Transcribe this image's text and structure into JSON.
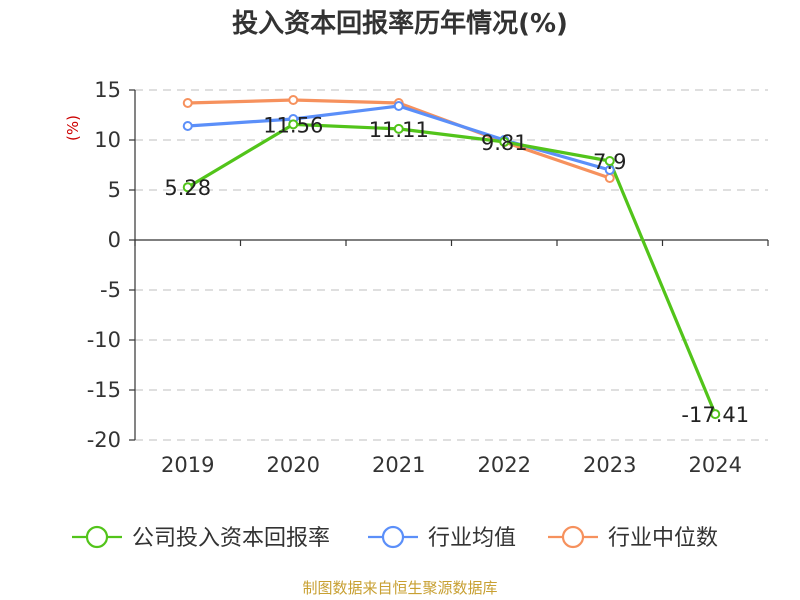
{
  "chart_data": {
    "type": "line",
    "title": "投入资本回报率历年情况(%)",
    "unit_label": "(%)",
    "categories": [
      "2019",
      "2020",
      "2021",
      "2022",
      "2023",
      "2024"
    ],
    "ylim": [
      -20,
      15
    ],
    "yticks": [
      15,
      10,
      5,
      0,
      -5,
      -10,
      -15,
      -20
    ],
    "grid": true,
    "legend_position": "bottom",
    "series": [
      {
        "name": "公司投入资本回报率",
        "color": "#52c41a",
        "values": [
          5.28,
          11.56,
          11.11,
          9.81,
          7.9,
          -17.41
        ],
        "labels": [
          "5.28",
          "11.56",
          "11.11",
          "9.81",
          "7.9",
          "-17.41"
        ]
      },
      {
        "name": "行业均值",
        "color": "#5b8ff9",
        "values": [
          11.4,
          12.1,
          13.4,
          10.0,
          7.0,
          null
        ]
      },
      {
        "name": "行业中位数",
        "color": "#f6915d",
        "values": [
          13.7,
          14.0,
          13.7,
          9.8,
          6.2,
          null
        ]
      }
    ],
    "source": "制图数据来自恒生聚源数据库"
  }
}
